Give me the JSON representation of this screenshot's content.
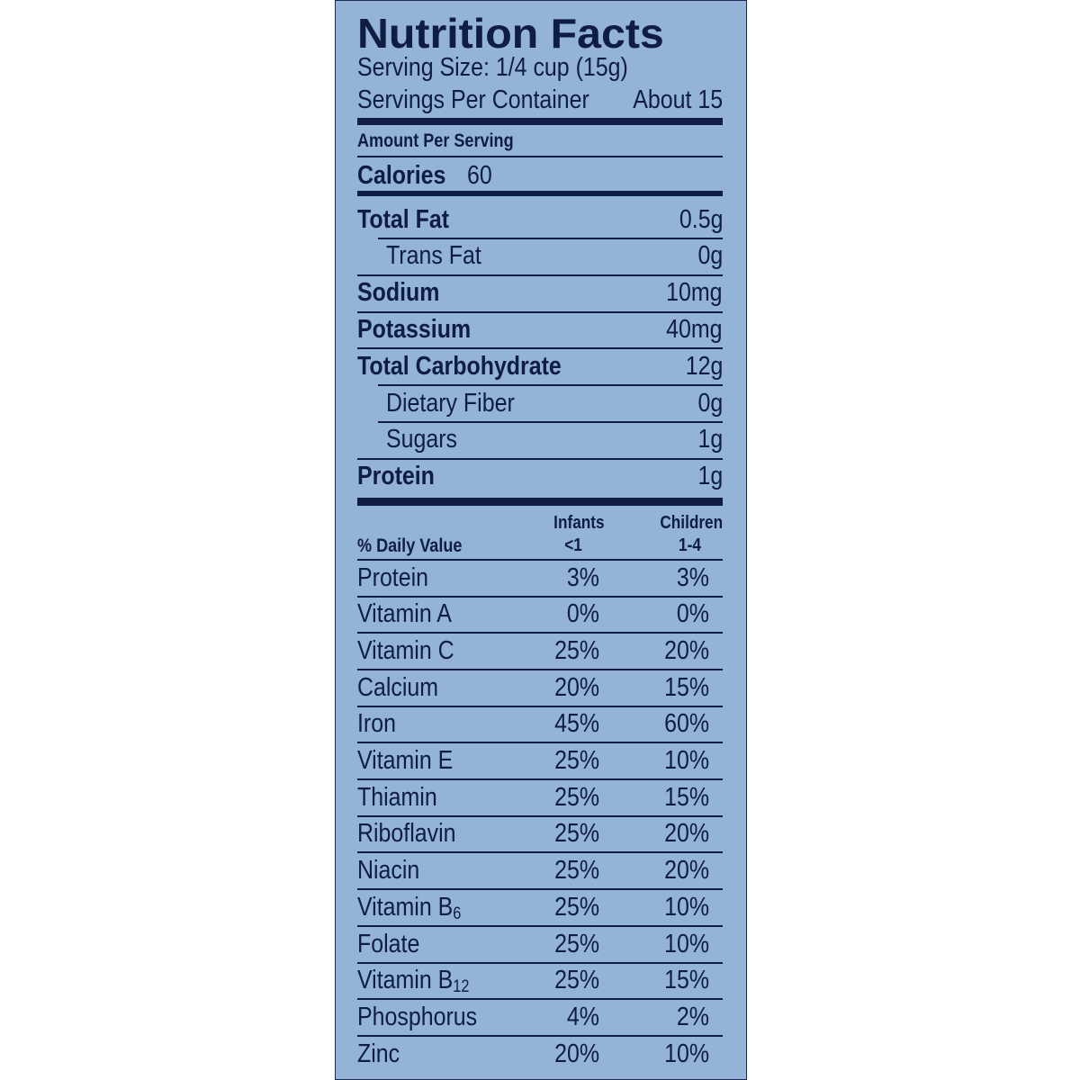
{
  "header": {
    "title": "Nutrition Facts",
    "serving_size": "Serving Size: 1/4 cup (15g)",
    "servings_label": "Servings Per Container",
    "servings_value": "About 15"
  },
  "amount_per_serving": "Amount Per Serving",
  "calories": {
    "label": "Calories",
    "value": "60"
  },
  "nutrients": [
    {
      "name": "Total Fat",
      "amount": "0.5g",
      "bold": true,
      "indent": false
    },
    {
      "name": "Trans Fat",
      "amount": "0g",
      "bold": false,
      "indent": true
    },
    {
      "name": "Sodium",
      "amount": "10mg",
      "bold": true,
      "indent": false
    },
    {
      "name": "Potassium",
      "amount": "40mg",
      "bold": true,
      "indent": false
    },
    {
      "name": "Total Carbohydrate",
      "amount": "12g",
      "bold": true,
      "indent": false
    },
    {
      "name": "Dietary Fiber",
      "amount": "0g",
      "bold": false,
      "indent": true
    },
    {
      "name": "Sugars",
      "amount": "1g",
      "bold": false,
      "indent": true
    },
    {
      "name": "Protein",
      "amount": "1g",
      "bold": true,
      "indent": false
    }
  ],
  "daily_value": {
    "label": "% Daily Value",
    "infants_header": [
      "Infants",
      "<1"
    ],
    "children_header": [
      "Children",
      "1-4"
    ],
    "rows": [
      {
        "name": "Protein",
        "infants": "3%",
        "children": "3%"
      },
      {
        "name": "Vitamin A",
        "infants": "0%",
        "children": "0%"
      },
      {
        "name": "Vitamin C",
        "infants": "25%",
        "children": "20%"
      },
      {
        "name": "Calcium",
        "infants": "20%",
        "children": "15%"
      },
      {
        "name": "Iron",
        "infants": "45%",
        "children": "60%"
      },
      {
        "name": "Vitamin E",
        "infants": "25%",
        "children": "10%"
      },
      {
        "name": "Thiamin",
        "infants": "25%",
        "children": "15%"
      },
      {
        "name": "Riboflavin",
        "infants": "25%",
        "children": "20%"
      },
      {
        "name": "Niacin",
        "infants": "25%",
        "children": "20%"
      },
      {
        "name": "Vitamin B",
        "sub": "6",
        "infants": "25%",
        "children": "10%"
      },
      {
        "name": "Folate",
        "infants": "25%",
        "children": "10%"
      },
      {
        "name": "Vitamin B",
        "sub": "12",
        "infants": "25%",
        "children": "15%"
      },
      {
        "name": "Phosphorus",
        "infants": "4%",
        "children": "2%"
      },
      {
        "name": "Zinc",
        "infants": "20%",
        "children": "10%"
      }
    ]
  }
}
